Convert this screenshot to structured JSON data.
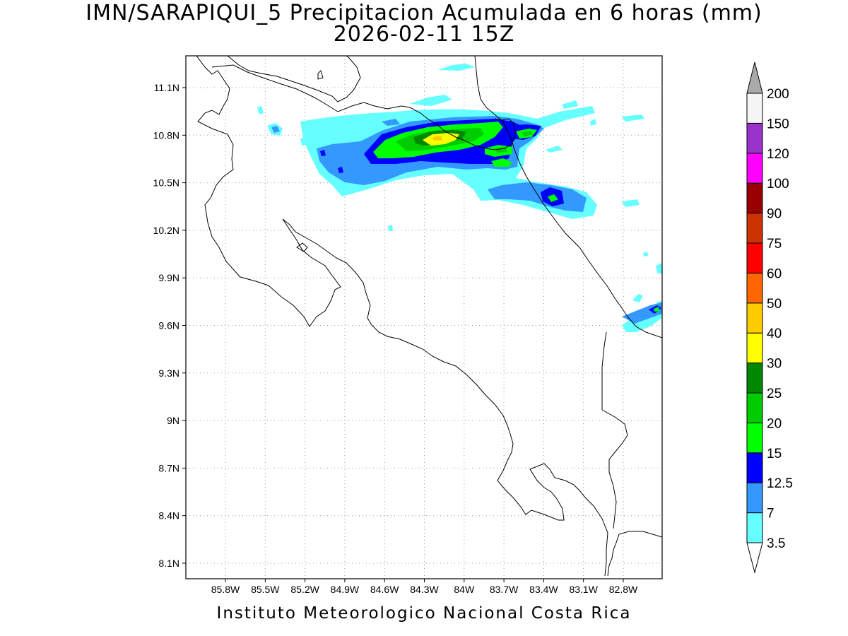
{
  "title_line1": "IMN/SARAPIQUI_5 Precipitacion Acumulada en 6 horas (mm)",
  "title_line2": "2026-02-11 15Z",
  "footer": "Instituto Meteorologico Nacional Costa Rica",
  "map": {
    "lon_ticks": [
      "85.8W",
      "85.5W",
      "85.2W",
      "84.9W",
      "84.6W",
      "84.3W",
      "84W",
      "83.7W",
      "83.4W",
      "83.1W",
      "82.8W"
    ],
    "lat_ticks": [
      "11.1N",
      "10.8N",
      "10.5N",
      "10.2N",
      "9.9N",
      "9.6N",
      "9.3N",
      "9N",
      "8.7N",
      "8.4N",
      "8.1N"
    ],
    "lon_values": [
      -85.8,
      -85.5,
      -85.2,
      -84.9,
      -84.6,
      -84.3,
      -84.0,
      -83.7,
      -83.4,
      -83.1,
      -82.8
    ],
    "lat_values": [
      11.1,
      10.8,
      10.5,
      10.2,
      9.9,
      9.6,
      9.3,
      9.0,
      8.7,
      8.4,
      8.1
    ]
  },
  "colorbar": {
    "levels": [
      "3.5",
      "7",
      "12.5",
      "15",
      "20",
      "25",
      "30",
      "40",
      "50",
      "60",
      "75",
      "90",
      "100",
      "120",
      "150",
      "200"
    ],
    "colors": [
      "#66ffff",
      "#3399ff",
      "#0000ff",
      "#00ff00",
      "#00cc00",
      "#008800",
      "#ffff00",
      "#ffcc00",
      "#ff6600",
      "#ff0000",
      "#cc3300",
      "#990000",
      "#ff00ff",
      "#9933cc",
      "#f5f5f5"
    ],
    "top_arrow_color": "#aaaaaa",
    "bottom_arrow_color": "#ffffff"
  }
}
